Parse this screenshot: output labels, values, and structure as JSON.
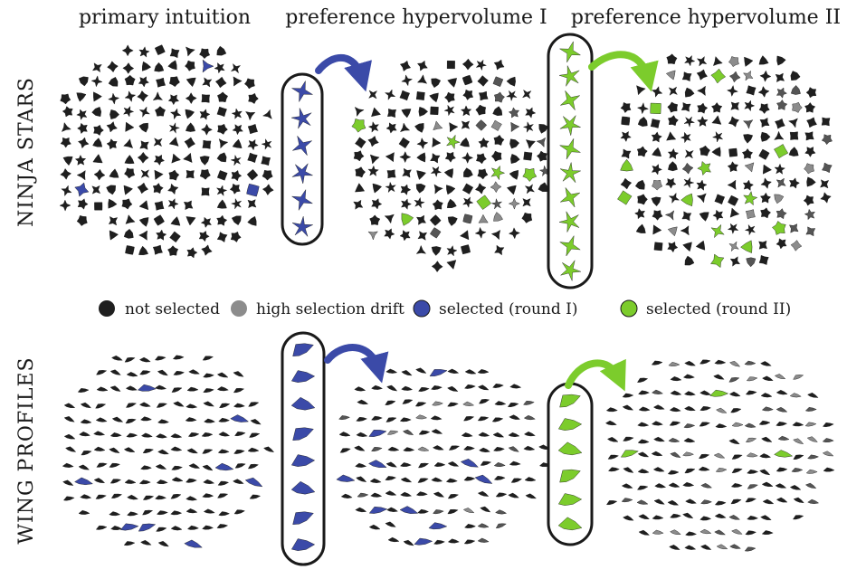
{
  "columns": [
    "primary intuition",
    "preference hypervolume I",
    "preference hypervolume II"
  ],
  "rows": [
    "NINJA STARS",
    "WING PROFILES"
  ],
  "legend": [
    {
      "label": "not selected",
      "color": "#1f1f1f"
    },
    {
      "label": "high selection drift",
      "color": "#8c8c8c"
    },
    {
      "label": "selected (round I)",
      "color": "#3b4aa8"
    },
    {
      "label": "selected (round II)",
      "color": "#7ccc2c"
    }
  ],
  "colors": {
    "dark": "#1f1f1f",
    "drift": "#8c8c8c",
    "blue": "#3b4aa8",
    "green": "#7ccc2c"
  },
  "icons": [
    "ninja-star-shape",
    "wing-profile-shape",
    "curved-arrow"
  ]
}
